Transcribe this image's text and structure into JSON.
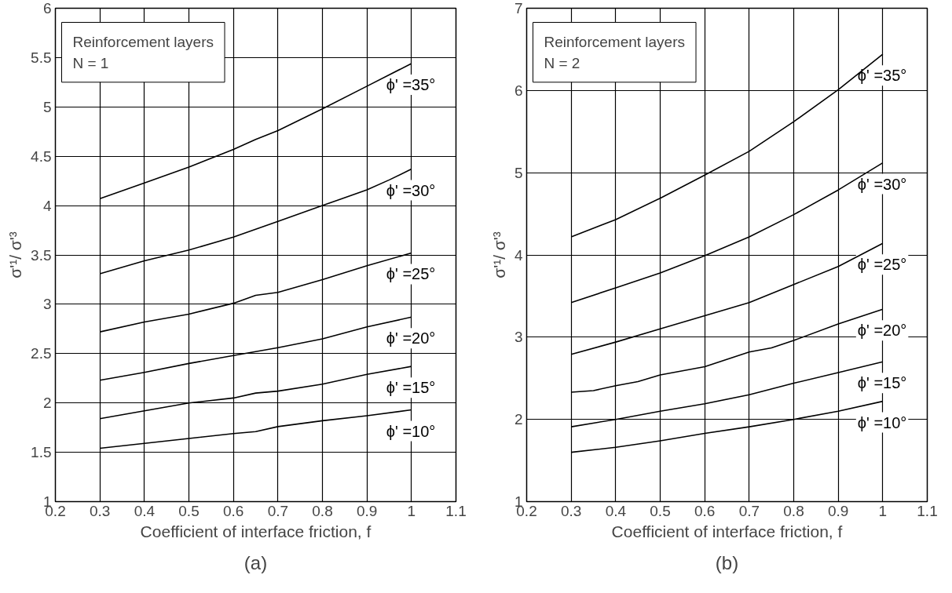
{
  "chart_data": [
    {
      "type": "line",
      "xlabel": "Coefficient of interface friction, f",
      "ylabel": "σ'¹/ σ'³",
      "xlim": [
        0.2,
        1.1
      ],
      "xticks": [
        0.2,
        0.3,
        0.4,
        0.5,
        0.6,
        0.7,
        0.8,
        0.9,
        1,
        1.1
      ],
      "ylim": [
        1,
        6
      ],
      "yticks": [
        1,
        1.5,
        2,
        2.5,
        3,
        3.5,
        4,
        4.5,
        5,
        5.5,
        6
      ],
      "grid": true,
      "marker": "none",
      "line_style": "solid",
      "annotations": [
        "Reinforcement layers\nN = 1",
        "(a)"
      ],
      "series": [
        {
          "name": "ϕ' =35°",
          "color": "#000000",
          "x": [
            0.3,
            0.4,
            0.5,
            0.6,
            0.65,
            0.7,
            0.8,
            0.9,
            1.0
          ],
          "values": [
            4.07,
            4.23,
            4.39,
            4.57,
            4.67,
            4.76,
            4.98,
            5.21,
            5.44
          ]
        },
        {
          "name": "ϕ' =30°",
          "color": "#000000",
          "x": [
            0.3,
            0.4,
            0.5,
            0.6,
            0.65,
            0.7,
            0.8,
            0.9,
            0.95,
            1.0
          ],
          "values": [
            3.31,
            3.44,
            3.55,
            3.68,
            3.76,
            3.84,
            4.0,
            4.16,
            4.26,
            4.37
          ]
        },
        {
          "name": "ϕ' =25°",
          "color": "#000000",
          "x": [
            0.3,
            0.4,
            0.5,
            0.6,
            0.65,
            0.7,
            0.8,
            0.9,
            1.0
          ],
          "values": [
            2.72,
            2.82,
            2.9,
            3.01,
            3.09,
            3.12,
            3.25,
            3.39,
            3.52
          ]
        },
        {
          "name": "ϕ' =20°",
          "color": "#000000",
          "x": [
            0.3,
            0.4,
            0.5,
            0.6,
            0.7,
            0.8,
            0.9,
            1.0
          ],
          "values": [
            2.23,
            2.31,
            2.4,
            2.48,
            2.56,
            2.65,
            2.77,
            2.87
          ]
        },
        {
          "name": "ϕ' =15°",
          "color": "#000000",
          "x": [
            0.3,
            0.4,
            0.5,
            0.6,
            0.65,
            0.7,
            0.8,
            0.9,
            1.0
          ],
          "values": [
            1.84,
            1.92,
            2.0,
            2.05,
            2.1,
            2.12,
            2.19,
            2.29,
            2.37
          ]
        },
        {
          "name": "ϕ' =10°",
          "color": "#000000",
          "x": [
            0.3,
            0.4,
            0.5,
            0.6,
            0.65,
            0.7,
            0.8,
            0.9,
            1.0
          ],
          "values": [
            1.54,
            1.59,
            1.64,
            1.69,
            1.71,
            1.76,
            1.82,
            1.87,
            1.93
          ]
        }
      ]
    },
    {
      "type": "line",
      "xlabel": "Coefficient of interface friction, f",
      "ylabel": "σ'¹/ σ'³",
      "xlim": [
        0.2,
        1.1
      ],
      "xticks": [
        0.2,
        0.3,
        0.4,
        0.5,
        0.6,
        0.7,
        0.8,
        0.9,
        1,
        1.1
      ],
      "ylim": [
        1,
        7
      ],
      "yticks": [
        1,
        2,
        3,
        4,
        5,
        6,
        7
      ],
      "grid": true,
      "marker": "none",
      "line_style": "solid",
      "annotations": [
        "Reinforcement layers\nN = 2",
        "(b)"
      ],
      "series": [
        {
          "name": "ϕ' =35°",
          "color": "#000000",
          "x": [
            0.3,
            0.4,
            0.5,
            0.6,
            0.7,
            0.8,
            0.9,
            1.0
          ],
          "values": [
            4.22,
            4.43,
            4.69,
            4.97,
            5.26,
            5.62,
            6.01,
            6.44
          ]
        },
        {
          "name": "ϕ' =30°",
          "color": "#000000",
          "x": [
            0.3,
            0.4,
            0.5,
            0.6,
            0.7,
            0.8,
            0.9,
            1.0
          ],
          "values": [
            3.42,
            3.6,
            3.78,
            3.99,
            4.22,
            4.49,
            4.79,
            5.12
          ]
        },
        {
          "name": "ϕ' =25°",
          "color": "#000000",
          "x": [
            0.3,
            0.4,
            0.5,
            0.6,
            0.7,
            0.8,
            0.9,
            1.0
          ],
          "values": [
            2.79,
            2.94,
            3.1,
            3.26,
            3.42,
            3.64,
            3.86,
            4.14
          ]
        },
        {
          "name": "ϕ' =20°",
          "color": "#000000",
          "x": [
            0.3,
            0.35,
            0.4,
            0.45,
            0.5,
            0.6,
            0.7,
            0.75,
            0.8,
            0.9,
            1.0
          ],
          "values": [
            2.33,
            2.35,
            2.41,
            2.46,
            2.54,
            2.64,
            2.82,
            2.87,
            2.96,
            3.16,
            3.34
          ]
        },
        {
          "name": "ϕ' =15°",
          "color": "#000000",
          "x": [
            0.3,
            0.4,
            0.5,
            0.6,
            0.7,
            0.8,
            0.9,
            1.0
          ],
          "values": [
            1.91,
            2.0,
            2.1,
            2.19,
            2.3,
            2.44,
            2.57,
            2.7
          ]
        },
        {
          "name": "ϕ' =10°",
          "color": "#000000",
          "x": [
            0.3,
            0.4,
            0.5,
            0.6,
            0.7,
            0.8,
            0.9,
            1.0
          ],
          "values": [
            1.6,
            1.66,
            1.74,
            1.83,
            1.91,
            2.0,
            2.1,
            2.22
          ]
        }
      ]
    }
  ]
}
